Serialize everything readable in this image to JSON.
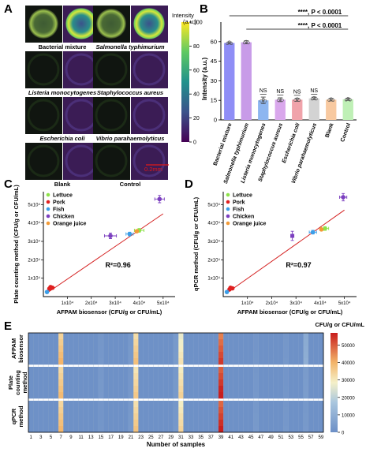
{
  "panels": {
    "a": "A",
    "b": "B",
    "c": "C",
    "d": "D",
    "e": "E"
  },
  "panel_a": {
    "colorbar_title": "Intensity",
    "colorbar_unit": "(a.u.)",
    "colorbar_ticks": [
      0,
      20,
      40,
      60,
      80,
      100
    ],
    "scale_bar": "0.2mm",
    "images": [
      {
        "label": "Bacterial mixture",
        "italic": false,
        "signal": "high"
      },
      {
        "label": "Salmonella typhimurium",
        "italic": true,
        "signal": "high"
      },
      {
        "label": "Listeria monocytogenes",
        "italic": true,
        "signal": "low"
      },
      {
        "label": "Staphylococcus aureus",
        "italic": true,
        "signal": "low"
      },
      {
        "label": "Escherichia coli",
        "italic": true,
        "signal": "low"
      },
      {
        "label": "Vibrio parahaemolyticus",
        "italic": true,
        "signal": "low"
      },
      {
        "label": "Blank",
        "italic": false,
        "signal": "low"
      },
      {
        "label": "Control",
        "italic": false,
        "signal": "low"
      }
    ]
  },
  "chart_data": [
    {
      "panel": "B",
      "type": "bar",
      "ylabel": "Intensity (a.u.)",
      "ylim": [
        0,
        75
      ],
      "yticks": [
        0,
        15,
        30,
        45,
        60
      ],
      "categories": [
        "Bacterial mixture",
        "Salmonella typhimurium",
        "Listeria monocytogenes",
        "Staphylococcus aureus",
        "Escherichia coli",
        "Vibrio parahaemolyticus",
        "Blank",
        "Control"
      ],
      "values": [
        59,
        59.5,
        15,
        15.5,
        15.5,
        16.5,
        15.5,
        15.8
      ],
      "errors": [
        0.8,
        1.2,
        2.5,
        1.5,
        1.2,
        1.0,
        1.0,
        0.8
      ],
      "colors": [
        "#8f8ef6",
        "#c89be8",
        "#8db6f0",
        "#d9a7ec",
        "#f0a3aa",
        "#d3d3d3",
        "#f8c9a0",
        "#bff0b6"
      ],
      "significance": [
        "NS",
        "NS",
        "NS",
        "NS"
      ],
      "annotations": [
        {
          "text": "****, P < 0.0001",
          "level": 1
        },
        {
          "text": "****, P < 0.0001",
          "level": 2
        }
      ]
    },
    {
      "panel": "C",
      "type": "scatter",
      "xlabel": "AFPAM biosensor (CFU/g or CFU/mL)",
      "ylabel": "Plate counting method (CFU/g or CFU/mL)",
      "xlim": [
        0,
        55000
      ],
      "ylim": [
        0,
        57000
      ],
      "xticks": [
        "1x10⁴",
        "2x10⁴",
        "3x10⁴",
        "4x10⁴",
        "5x10⁴"
      ],
      "yticks": [
        "1x10⁴",
        "2x10⁴",
        "3x10⁴",
        "4x10⁴",
        "5x10⁴"
      ],
      "r2": "R²=0.96",
      "fit": {
        "x": [
          1000,
          50000
        ],
        "y": [
          1500,
          45000
        ]
      },
      "series": [
        {
          "name": "Lettuce",
          "color": "#8ee24a",
          "points": [
            [
              40000,
              36000
            ]
          ],
          "xerr": [
            2000
          ],
          "yerr": [
            1000
          ]
        },
        {
          "name": "Pork",
          "color": "#e02020",
          "points": [
            [
              3800,
              4800
            ],
            [
              3000,
              5200
            ],
            [
              2500,
              4300
            ]
          ],
          "xerr": [
            0,
            0,
            0
          ],
          "yerr": [
            0,
            0,
            0
          ]
        },
        {
          "name": "Fish",
          "color": "#3b9ee8",
          "points": [
            [
              36000,
              34000
            ],
            [
              1500,
              2500
            ]
          ],
          "xerr": [
            1500,
            0
          ],
          "yerr": [
            1000,
            0
          ]
        },
        {
          "name": "Chicken",
          "color": "#7b3fbf",
          "points": [
            [
              48500,
              53000
            ],
            [
              28000,
              33000
            ]
          ],
          "xerr": [
            2000,
            2500
          ],
          "yerr": [
            2000,
            1500
          ]
        },
        {
          "name": "Orange juice",
          "color": "#f29a36",
          "points": [
            [
              39000,
              35500
            ]
          ],
          "xerr": [
            0
          ],
          "yerr": [
            0
          ]
        }
      ]
    },
    {
      "panel": "D",
      "type": "scatter",
      "xlabel": "AFPAM biosensor (CFU/g or CFU/mL)",
      "ylabel": "qPCR method (CFU/g or CFU/mL)",
      "xlim": [
        0,
        55000
      ],
      "ylim": [
        0,
        57000
      ],
      "xticks": [
        "1x10⁴",
        "2x10⁴",
        "3x10⁴",
        "4x10⁴",
        "5x10⁴"
      ],
      "yticks": [
        "1x10⁴",
        "2x10⁴",
        "3x10⁴",
        "4x10⁴",
        "5x10⁴"
      ],
      "r2": "R²=0.97",
      "fit": {
        "x": [
          1000,
          50000
        ],
        "y": [
          1500,
          47000
        ]
      },
      "series": [
        {
          "name": "Lettuce",
          "color": "#8ee24a",
          "points": [
            [
              42000,
              37000
            ]
          ],
          "xerr": [
            1500
          ],
          "yerr": [
            1000
          ]
        },
        {
          "name": "Pork",
          "color": "#e02020",
          "points": [
            [
              3800,
              4500
            ],
            [
              3000,
              4800
            ],
            [
              2600,
              3900
            ]
          ],
          "xerr": [
            0,
            0,
            0
          ],
          "yerr": [
            0,
            0,
            0
          ]
        },
        {
          "name": "Fish",
          "color": "#3b9ee8",
          "points": [
            [
              37000,
              35000
            ],
            [
              1500,
              2500
            ]
          ],
          "xerr": [
            1500,
            0
          ],
          "yerr": [
            1000,
            0
          ]
        },
        {
          "name": "Chicken",
          "color": "#7b3fbf",
          "points": [
            [
              49500,
              54000
            ],
            [
              28500,
              33000
            ]
          ],
          "xerr": [
            1500,
            0
          ],
          "yerr": [
            2000,
            2500
          ]
        },
        {
          "name": "Orange juice",
          "color": "#f29a36",
          "points": [
            [
              40500,
              36500
            ]
          ],
          "xerr": [
            0
          ],
          "yerr": [
            0
          ]
        }
      ]
    },
    {
      "panel": "E",
      "type": "heatmap",
      "xlabel": "Number of samples",
      "xticks": [
        1,
        3,
        5,
        7,
        9,
        11,
        13,
        15,
        17,
        19,
        21,
        23,
        25,
        27,
        29,
        31,
        33,
        35,
        37,
        39,
        41,
        43,
        45,
        47,
        49,
        51,
        53,
        55,
        57,
        59
      ],
      "row_groups": [
        "AFPAM biosensor",
        "Plate counting method",
        "qPCR method"
      ],
      "colorbar_title": "CFU/g or CFU/mL",
      "colorbar_ticks": [
        0,
        10000,
        20000,
        30000,
        40000,
        50000
      ],
      "vmax": 57000,
      "baseline": 500,
      "hotspots": [
        {
          "sample": 7,
          "values": [
            37000,
            36000,
            36500
          ]
        },
        {
          "sample": 22,
          "values": [
            35000,
            33500,
            34500
          ]
        },
        {
          "sample": 31,
          "values": [
            29000,
            32000,
            31500
          ]
        },
        {
          "sample": 39,
          "values": [
            50000,
            54000,
            53000
          ]
        },
        {
          "sample": 30,
          "values": [
            3500,
            3000,
            2500
          ]
        },
        {
          "sample": 21,
          "values": [
            3000,
            2500,
            3000
          ]
        },
        {
          "sample": 56,
          "values": [
            9000,
            4000,
            3000
          ]
        },
        {
          "sample": 52,
          "values": [
            2500,
            2000,
            2500
          ]
        },
        {
          "sample": 15,
          "values": [
            2500,
            3000,
            2000
          ]
        },
        {
          "sample": 46,
          "values": [
            2000,
            2500,
            3000
          ]
        }
      ]
    }
  ]
}
